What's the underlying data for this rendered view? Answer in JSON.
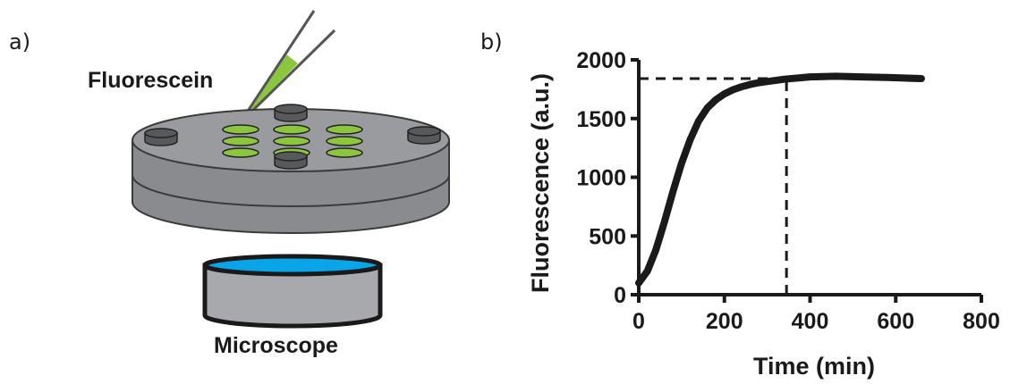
{
  "panel_a": {
    "label": "a)",
    "pipette_label": "Fluorescein",
    "microscope_label": "Microscope",
    "colors": {
      "plate": "#8a8b8e",
      "plate_top": "#9a9b9e",
      "well": "#8cc63f",
      "pipette_liquid": "#8cc63f",
      "post": "#58595b",
      "objective_lens": "#0aa4e8",
      "objective_body": "#a7a9ac"
    }
  },
  "panel_b": {
    "label": "b)"
  },
  "chart_data": {
    "type": "line",
    "title": "",
    "xlabel": "Time (min)",
    "ylabel": "Fluorescence (a.u.)",
    "xlim": [
      0,
      800
    ],
    "ylim": [
      0,
      2000
    ],
    "xticks": [
      0,
      200,
      400,
      600,
      800
    ],
    "yticks": [
      0,
      500,
      1000,
      1500,
      2000
    ],
    "grid": false,
    "series": [
      {
        "x": [
          0,
          20,
          40,
          60,
          80,
          100,
          120,
          140,
          160,
          180,
          200,
          220,
          240,
          260,
          280,
          300,
          340,
          400,
          460,
          520,
          580,
          620,
          660
        ],
        "y": [
          100,
          200,
          380,
          620,
          880,
          1120,
          1320,
          1480,
          1590,
          1660,
          1710,
          1745,
          1770,
          1790,
          1805,
          1815,
          1835,
          1855,
          1860,
          1855,
          1850,
          1845,
          1840
        ],
        "color": "#1a1a1a"
      }
    ],
    "reference_lines": [
      {
        "style": "dashed",
        "orientation": "horizontal",
        "y": 1840,
        "x_from": 0,
        "x_to": 345
      },
      {
        "style": "dashed",
        "orientation": "vertical",
        "x": 345,
        "y_from": 0,
        "y_to": 1840
      }
    ]
  }
}
